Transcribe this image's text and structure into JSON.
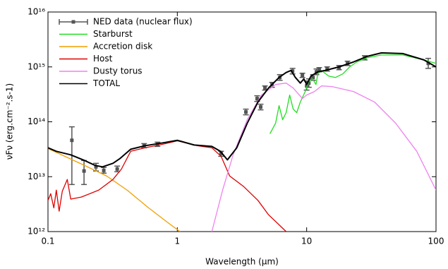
{
  "chart_data": {
    "type": "line",
    "xlabel": "Wavelength (µm)",
    "ylabel": "νFν (erg.cm⁻².s-1)",
    "xscale": "log",
    "yscale": "log",
    "xlim": [
      0.1,
      100
    ],
    "ylim": [
      1000000000000.0,
      1e+16
    ],
    "xticks": [
      0.1,
      1,
      10,
      100
    ],
    "yticks": [
      {
        "value": 1000000000000.0,
        "label": "10¹²"
      },
      {
        "value": 10000000000000.0,
        "label": "10¹³"
      },
      {
        "value": 100000000000000.0,
        "label": "10¹⁴"
      },
      {
        "value": 1000000000000000.0,
        "label": "10¹⁵"
      },
      {
        "value": 1e+16,
        "label": "10¹⁶"
      }
    ],
    "legend": "upper left",
    "series": [
      {
        "name": "NED data (nuclear flux)",
        "color": "#555555",
        "style": "errorbar",
        "x": [
          0.153,
          0.19,
          0.235,
          0.27,
          0.343,
          0.554,
          0.703,
          2.18,
          3.39,
          4.14,
          4.41,
          4.76,
          5.4,
          6.2,
          7.78,
          9.27,
          10,
          10.4,
          11.2,
          11.9,
          12.5,
          14.4,
          17.8,
          20.7,
          28.1,
          87.1
        ],
        "values": [
          46000000000000.0,
          12700000000000.0,
          15100000000000.0,
          13000000000000.0,
          13800000000000.0,
          36600000000000.0,
          38900000000000.0,
          26500000000000.0,
          151000000000000.0,
          265000000000000.0,
          186000000000000.0,
          412000000000000.0,
          478000000000000.0,
          642000000000000.0,
          838000000000000.0,
          702000000000000.0,
          450000000000000.0,
          507000000000000.0,
          642000000000000.0,
          813000000000000.0,
          889000000000000.0,
          916000000000000.0,
          970000000000000.0,
          1160000000000000.0,
          1470000000000000.0,
          1160000000000000.0
        ],
        "err_low": [
          7200000000000.0,
          7200000000000.0,
          12700000000000.0,
          11600000000000.0,
          12300000000000.0,
          33600000000000.0,
          35600000000000.0,
          23500000000000.0,
          134000000000000.0,
          235000000000000.0,
          165000000000000.0,
          378000000000000.0,
          425000000000000.0,
          570000000000000.0,
          745000000000000.0,
          642000000000000.0,
          378000000000000.0,
          425000000000000.0,
          570000000000000.0,
          723000000000000.0,
          813000000000000.0,
          838000000000000.0,
          889000000000000.0,
          1060000000000000.0,
          1340000000000000.0,
          940000000000000.0
        ],
        "err_high": [
          81000000000000.0,
          19700000000000.0,
          17500000000000.0,
          14700000000000.0,
          15600000000000.0,
          40000000000000.0,
          42500000000000.0,
          29000000000000.0,
          170000000000000.0,
          298000000000000.0,
          209000000000000.0,
          450000000000000.0,
          522000000000000.0,
          723000000000000.0,
          940000000000000.0,
          767000000000000.0,
          554000000000000.0,
          605000000000000.0,
          723000000000000.0,
          916000000000000.0,
          970000000000000.0,
          1000000000000000.0,
          1060000000000000.0,
          1270000000000000.0,
          1600000000000000.0,
          1430000000000000.0
        ]
      },
      {
        "name": "Starburst",
        "color": "#22dd22",
        "x": [
          5.2,
          5.75,
          6.12,
          6.52,
          6.94,
          7.39,
          7.87,
          8.38,
          8.93,
          9.75,
          10.4,
          11.1,
          11.8,
          12.2,
          13.0,
          14.8,
          16.7,
          19,
          21.5,
          24.4,
          29.5,
          37.9,
          55.3,
          80.7,
          100
        ],
        "values": [
          60500000000000.0,
          94000000000000.0,
          197000000000000.0,
          109000000000000.0,
          147000000000000.0,
          307000000000000.0,
          170000000000000.0,
          147000000000000.0,
          229000000000000.0,
          356000000000000.0,
          554000000000000.0,
          605000000000000.0,
          478000000000000.0,
          745000000000000.0,
          863000000000000.0,
          680000000000000.0,
          642000000000000.0,
          745000000000000.0,
          1000000000000000.0,
          1230000000000000.0,
          1470000000000000.0,
          1650000000000000.0,
          1650000000000000.0,
          1340000000000000.0,
          1160000000000000.0
        ]
      },
      {
        "name": "Accretion disk",
        "color": "#f0a000",
        "x": [
          0.1,
          0.192,
          0.284,
          0.409,
          0.597,
          0.871,
          1.05
        ],
        "values": [
          32600000000000.0,
          16000000000000.0,
          10300000000000.0,
          5700000000000.0,
          2730000000000.0,
          1380000000000.0,
          1000000000000.0
        ]
      },
      {
        "name": "Host",
        "color": "#dd0000",
        "x": [
          0.1,
          0.105,
          0.111,
          0.116,
          0.122,
          0.129,
          0.141,
          0.15,
          0.181,
          0.247,
          0.318,
          0.37,
          0.436,
          0.561,
          0.768,
          1,
          1.44,
          1.85,
          2.18,
          2.54,
          3.26,
          4.2,
          5.07,
          6.94
        ],
        "values": [
          3700000000000.0,
          4900000000000.0,
          2700000000000.0,
          5700000000000.0,
          2350000000000.0,
          5400000000000.0,
          8900000000000.0,
          3900000000000.0,
          4250000000000.0,
          5700000000000.0,
          8900000000000.0,
          13800000000000.0,
          29000000000000.0,
          33600000000000.0,
          38900000000000.0,
          45000000000000.0,
          36600000000000.0,
          33600000000000.0,
          23500000000000.0,
          10300000000000.0,
          6600000000000.0,
          3700000000000.0,
          2030000000000.0,
          1000000000000.0
        ]
      },
      {
        "name": "Dusty torus",
        "color": "#ee82ee",
        "x": [
          1.85,
          2.24,
          2.7,
          3.47,
          4.47,
          5.75,
          6.94,
          7.87,
          9.27,
          10,
          11.5,
          13.0,
          15.7,
          23,
          33.5,
          48.8,
          71,
          100
        ],
        "values": [
          1000000000000.0,
          5700000000000.0,
          25000000000000.0,
          109000000000000.0,
          307000000000000.0,
          478000000000000.0,
          507000000000000.0,
          412000000000000.0,
          265000000000000.0,
          307000000000000.0,
          356000000000000.0,
          450000000000000.0,
          438000000000000.0,
          356000000000000.0,
          229000000000000.0,
          94000000000000.0,
          29000000000000.0,
          5700000000000.0
        ]
      },
      {
        "name": "TOTAL",
        "color": "#000000",
        "x": [
          0.1,
          0.116,
          0.15,
          0.192,
          0.232,
          0.264,
          0.318,
          0.361,
          0.436,
          0.561,
          0.768,
          1,
          1.35,
          1.85,
          2.15,
          2.44,
          2.88,
          3.47,
          4.2,
          5.07,
          6.12,
          6.94,
          7.59,
          8.18,
          8.93,
          9.51,
          10,
          10.8,
          12.2,
          13.9,
          17.8,
          23,
          29.5,
          37.9,
          55.3,
          80.7,
          100
        ],
        "values": [
          33600000000000.0,
          29000000000000.0,
          25000000000000.0,
          19700000000000.0,
          16000000000000.0,
          15100000000000.0,
          17500000000000.0,
          21500000000000.0,
          31600000000000.0,
          36600000000000.0,
          41200000000000.0,
          46000000000000.0,
          37800000000000.0,
          35600000000000.0,
          29000000000000.0,
          20300000000000.0,
          33600000000000.0,
          94000000000000.0,
          229000000000000.0,
          412000000000000.0,
          642000000000000.0,
          790000000000000.0,
          863000000000000.0,
          642000000000000.0,
          507000000000000.0,
          605000000000000.0,
          478000000000000.0,
          680000000000000.0,
          813000000000000.0,
          863000000000000.0,
          1000000000000000.0,
          1230000000000000.0,
          1560000000000000.0,
          1800000000000000.0,
          1750000000000000.0,
          1340000000000000.0,
          1000000000000000.0
        ]
      }
    ]
  }
}
